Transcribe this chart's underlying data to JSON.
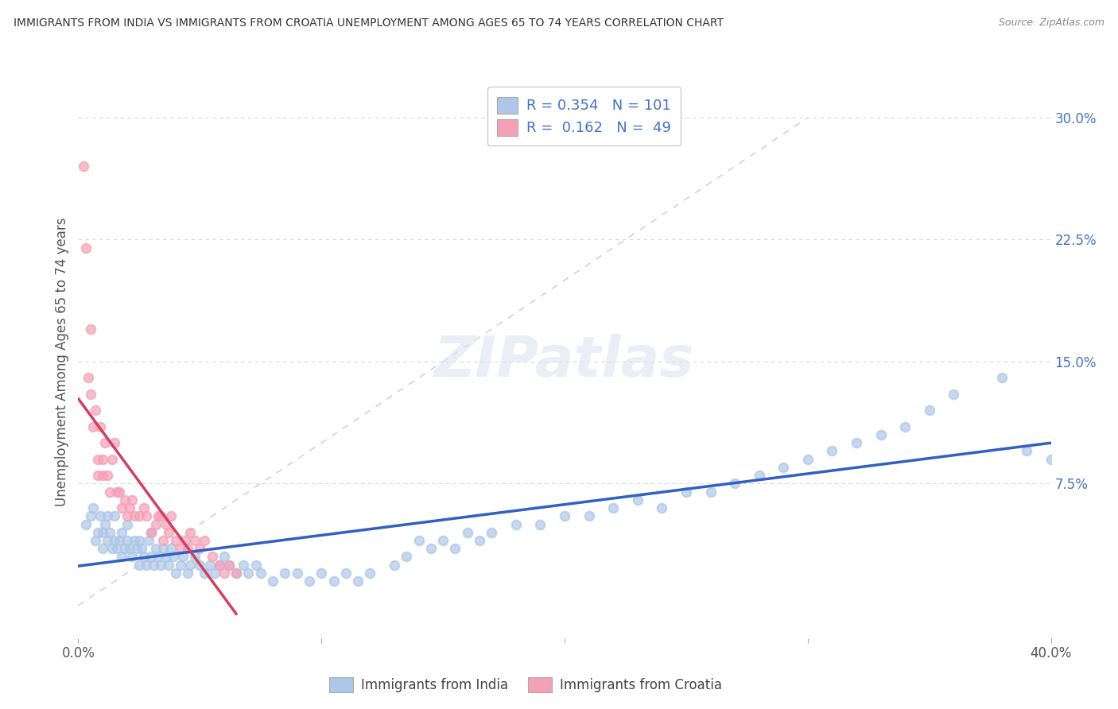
{
  "title": "IMMIGRANTS FROM INDIA VS IMMIGRANTS FROM CROATIA UNEMPLOYMENT AMONG AGES 65 TO 74 YEARS CORRELATION CHART",
  "source": "Source: ZipAtlas.com",
  "ylabel": "Unemployment Among Ages 65 to 74 years",
  "xlim": [
    0.0,
    0.4
  ],
  "ylim": [
    -0.02,
    0.32
  ],
  "india_R": 0.354,
  "india_N": 101,
  "croatia_R": 0.162,
  "croatia_N": 49,
  "india_color": "#aec6e8",
  "croatia_color": "#f4a0b8",
  "india_line_color": "#3060c0",
  "croatia_line_color": "#d04060",
  "identity_line_color": "#cccccc",
  "legend_label_india": "Immigrants from India",
  "legend_label_croatia": "Immigrants from Croatia",
  "background_color": "#ffffff",
  "india_scatter_x": [
    0.003,
    0.005,
    0.006,
    0.007,
    0.008,
    0.009,
    0.01,
    0.01,
    0.011,
    0.012,
    0.012,
    0.013,
    0.014,
    0.015,
    0.015,
    0.016,
    0.017,
    0.018,
    0.018,
    0.019,
    0.02,
    0.02,
    0.021,
    0.022,
    0.023,
    0.024,
    0.025,
    0.025,
    0.026,
    0.027,
    0.028,
    0.029,
    0.03,
    0.03,
    0.031,
    0.032,
    0.033,
    0.034,
    0.035,
    0.036,
    0.037,
    0.038,
    0.039,
    0.04,
    0.042,
    0.043,
    0.045,
    0.046,
    0.048,
    0.05,
    0.052,
    0.054,
    0.056,
    0.058,
    0.06,
    0.062,
    0.065,
    0.068,
    0.07,
    0.073,
    0.075,
    0.08,
    0.085,
    0.09,
    0.095,
    0.1,
    0.105,
    0.11,
    0.115,
    0.12,
    0.13,
    0.135,
    0.14,
    0.145,
    0.15,
    0.155,
    0.16,
    0.165,
    0.17,
    0.18,
    0.19,
    0.2,
    0.21,
    0.22,
    0.23,
    0.24,
    0.25,
    0.26,
    0.27,
    0.28,
    0.29,
    0.3,
    0.31,
    0.32,
    0.33,
    0.34,
    0.35,
    0.36,
    0.38,
    0.39,
    0.4
  ],
  "india_scatter_y": [
    0.05,
    0.055,
    0.06,
    0.04,
    0.045,
    0.055,
    0.035,
    0.045,
    0.05,
    0.04,
    0.055,
    0.045,
    0.035,
    0.04,
    0.055,
    0.035,
    0.04,
    0.03,
    0.045,
    0.035,
    0.04,
    0.05,
    0.035,
    0.03,
    0.04,
    0.035,
    0.025,
    0.04,
    0.035,
    0.03,
    0.025,
    0.04,
    0.03,
    0.045,
    0.025,
    0.035,
    0.03,
    0.025,
    0.035,
    0.03,
    0.025,
    0.035,
    0.03,
    0.02,
    0.025,
    0.03,
    0.02,
    0.025,
    0.03,
    0.025,
    0.02,
    0.025,
    0.02,
    0.025,
    0.03,
    0.025,
    0.02,
    0.025,
    0.02,
    0.025,
    0.02,
    0.015,
    0.02,
    0.02,
    0.015,
    0.02,
    0.015,
    0.02,
    0.015,
    0.02,
    0.025,
    0.03,
    0.04,
    0.035,
    0.04,
    0.035,
    0.045,
    0.04,
    0.045,
    0.05,
    0.05,
    0.055,
    0.055,
    0.06,
    0.065,
    0.06,
    0.07,
    0.07,
    0.075,
    0.08,
    0.085,
    0.09,
    0.095,
    0.1,
    0.105,
    0.11,
    0.12,
    0.13,
    0.14,
    0.095,
    0.09
  ],
  "croatia_scatter_x": [
    0.002,
    0.003,
    0.004,
    0.005,
    0.005,
    0.006,
    0.007,
    0.008,
    0.008,
    0.009,
    0.01,
    0.01,
    0.011,
    0.012,
    0.013,
    0.014,
    0.015,
    0.016,
    0.017,
    0.018,
    0.019,
    0.02,
    0.021,
    0.022,
    0.023,
    0.025,
    0.027,
    0.028,
    0.03,
    0.032,
    0.033,
    0.034,
    0.035,
    0.036,
    0.037,
    0.038,
    0.04,
    0.042,
    0.044,
    0.045,
    0.046,
    0.048,
    0.05,
    0.052,
    0.055,
    0.058,
    0.06,
    0.062,
    0.065
  ],
  "croatia_scatter_y": [
    0.27,
    0.22,
    0.14,
    0.13,
    0.17,
    0.11,
    0.12,
    0.08,
    0.09,
    0.11,
    0.08,
    0.09,
    0.1,
    0.08,
    0.07,
    0.09,
    0.1,
    0.07,
    0.07,
    0.06,
    0.065,
    0.055,
    0.06,
    0.065,
    0.055,
    0.055,
    0.06,
    0.055,
    0.045,
    0.05,
    0.055,
    0.055,
    0.04,
    0.05,
    0.045,
    0.055,
    0.04,
    0.035,
    0.04,
    0.035,
    0.045,
    0.04,
    0.035,
    0.04,
    0.03,
    0.025,
    0.02,
    0.025,
    0.02
  ]
}
